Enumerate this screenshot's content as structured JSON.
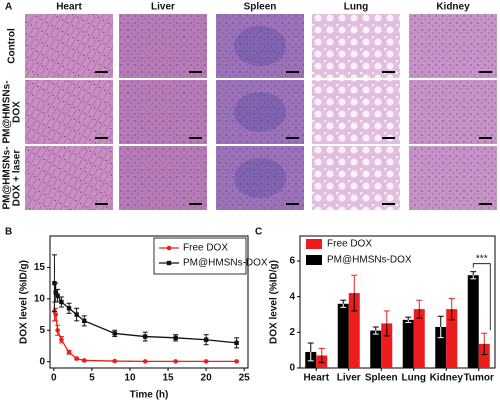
{
  "histology": {
    "panel": "A",
    "columns": [
      "Heart",
      "Liver",
      "Spleen",
      "Lung",
      "Kidney"
    ],
    "rows": [
      [
        "Control"
      ],
      [
        "PM@HMSNs-",
        "DOX"
      ],
      [
        "PM@HMSNs-",
        "DOX + laser"
      ]
    ]
  },
  "chart_data": [
    {
      "type": "line",
      "panel": "B",
      "x_label": "Time (h)",
      "y_label": "DOX level (%ID/g)",
      "x": [
        0.083,
        0.25,
        0.5,
        1,
        2,
        3,
        4,
        8,
        12,
        16,
        20,
        24
      ],
      "series": [
        {
          "name": "Free DOX",
          "color": "#e8201c",
          "marker": "circle",
          "values": [
            8.0,
            7.5,
            5.0,
            3.5,
            1.5,
            0.5,
            0.2,
            0.1,
            0.05,
            0.05,
            0.05,
            0.05
          ],
          "errors": [
            1.5,
            1.0,
            0.8,
            0.5,
            0.3,
            0.2,
            0.1,
            0.05,
            0.05,
            0.05,
            0.05,
            0.05
          ]
        },
        {
          "name": "PM@HMSNs-DOX",
          "color": "#111111",
          "marker": "square",
          "values": [
            12.5,
            11.0,
            10.5,
            9.5,
            8.5,
            7.5,
            6.5,
            4.5,
            4.0,
            3.8,
            3.5,
            3.0
          ],
          "errors": [
            4.5,
            1.5,
            1.0,
            0.8,
            0.8,
            1.0,
            0.8,
            0.5,
            0.7,
            0.5,
            0.8,
            0.8
          ]
        }
      ],
      "xlim": [
        -0.5,
        25.5
      ],
      "xticks": [
        0,
        5,
        10,
        15,
        20,
        25
      ],
      "ylim": [
        -1,
        20
      ],
      "yticks": [
        0,
        5,
        10,
        15
      ],
      "legend": "top-right"
    },
    {
      "type": "bar",
      "panel": "C",
      "y_label": "DOX level (%ID/g)",
      "categories": [
        "Heart",
        "Liver",
        "Spleen",
        "Lung",
        "Kidney",
        "Tumor"
      ],
      "series": [
        {
          "name": "Free DOX",
          "color": "#ee1c1c",
          "values": [
            0.7,
            4.2,
            2.5,
            3.3,
            3.3,
            1.35
          ],
          "errors": [
            0.4,
            1.0,
            0.7,
            0.5,
            0.6,
            0.6
          ]
        },
        {
          "name": "PM@HMSNs-DOX",
          "color": "#000000",
          "values": [
            0.9,
            3.6,
            2.1,
            2.7,
            2.3,
            5.2
          ],
          "errors": [
            0.5,
            0.2,
            0.2,
            0.15,
            0.6,
            0.2
          ]
        }
      ],
      "draw_order": [
        1,
        0
      ],
      "annotation": "***",
      "ylim": [
        0,
        7.4
      ],
      "yticks": [
        0,
        2,
        4,
        6
      ],
      "legend": "top-left"
    }
  ]
}
